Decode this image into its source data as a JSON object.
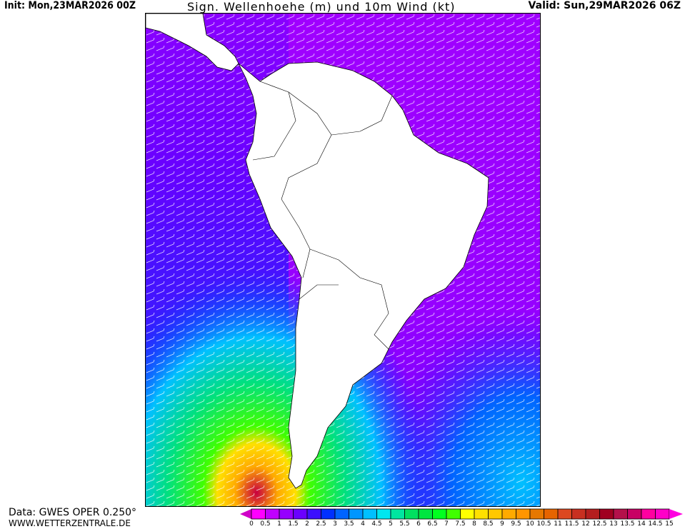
{
  "header": {
    "init": "Init: Mon,23MAR2026 00Z",
    "title": "Sign. Wellenhoehe (m) und 10m Wind (kt)",
    "valid": "Valid: Sun,29MAR2026 06Z"
  },
  "footer": {
    "data_source": "Data: GWES OPER 0.250°",
    "website": "WWW.WETTERZENTRALE.DE"
  },
  "colorbar": {
    "ticks": [
      "0",
      "0.5",
      "1",
      "1.5",
      "2",
      "2.5",
      "3",
      "3.5",
      "4",
      "4.5",
      "5",
      "5.5",
      "6",
      "6.5",
      "7",
      "7.5",
      "8",
      "8.5",
      "9",
      "9.5",
      "10",
      "10.5",
      "11",
      "11.5",
      "12",
      "12.5",
      "13",
      "13.5",
      "14",
      "14.5",
      "15"
    ],
    "colors": [
      "#ff00ff",
      "#c000ff",
      "#9600ff",
      "#6a00ff",
      "#3c10ff",
      "#0030ff",
      "#0064ff",
      "#0096ff",
      "#00c0ff",
      "#00e6f0",
      "#00e6a0",
      "#00e060",
      "#00e640",
      "#00ff20",
      "#40ff00",
      "#ffff00",
      "#ffe000",
      "#ffc800",
      "#ffaa00",
      "#ff9600",
      "#e67800",
      "#e66400",
      "#dc4820",
      "#c83020",
      "#b41e1e",
      "#a00020",
      "#b4104a",
      "#c80064",
      "#ff00a0",
      "#ff00c8"
    ],
    "under_color": "#d000c8",
    "over_color": "#ff00e0"
  },
  "map": {
    "region": "South America",
    "land_color": "#ffffff",
    "barb_color": "#ffffff"
  }
}
